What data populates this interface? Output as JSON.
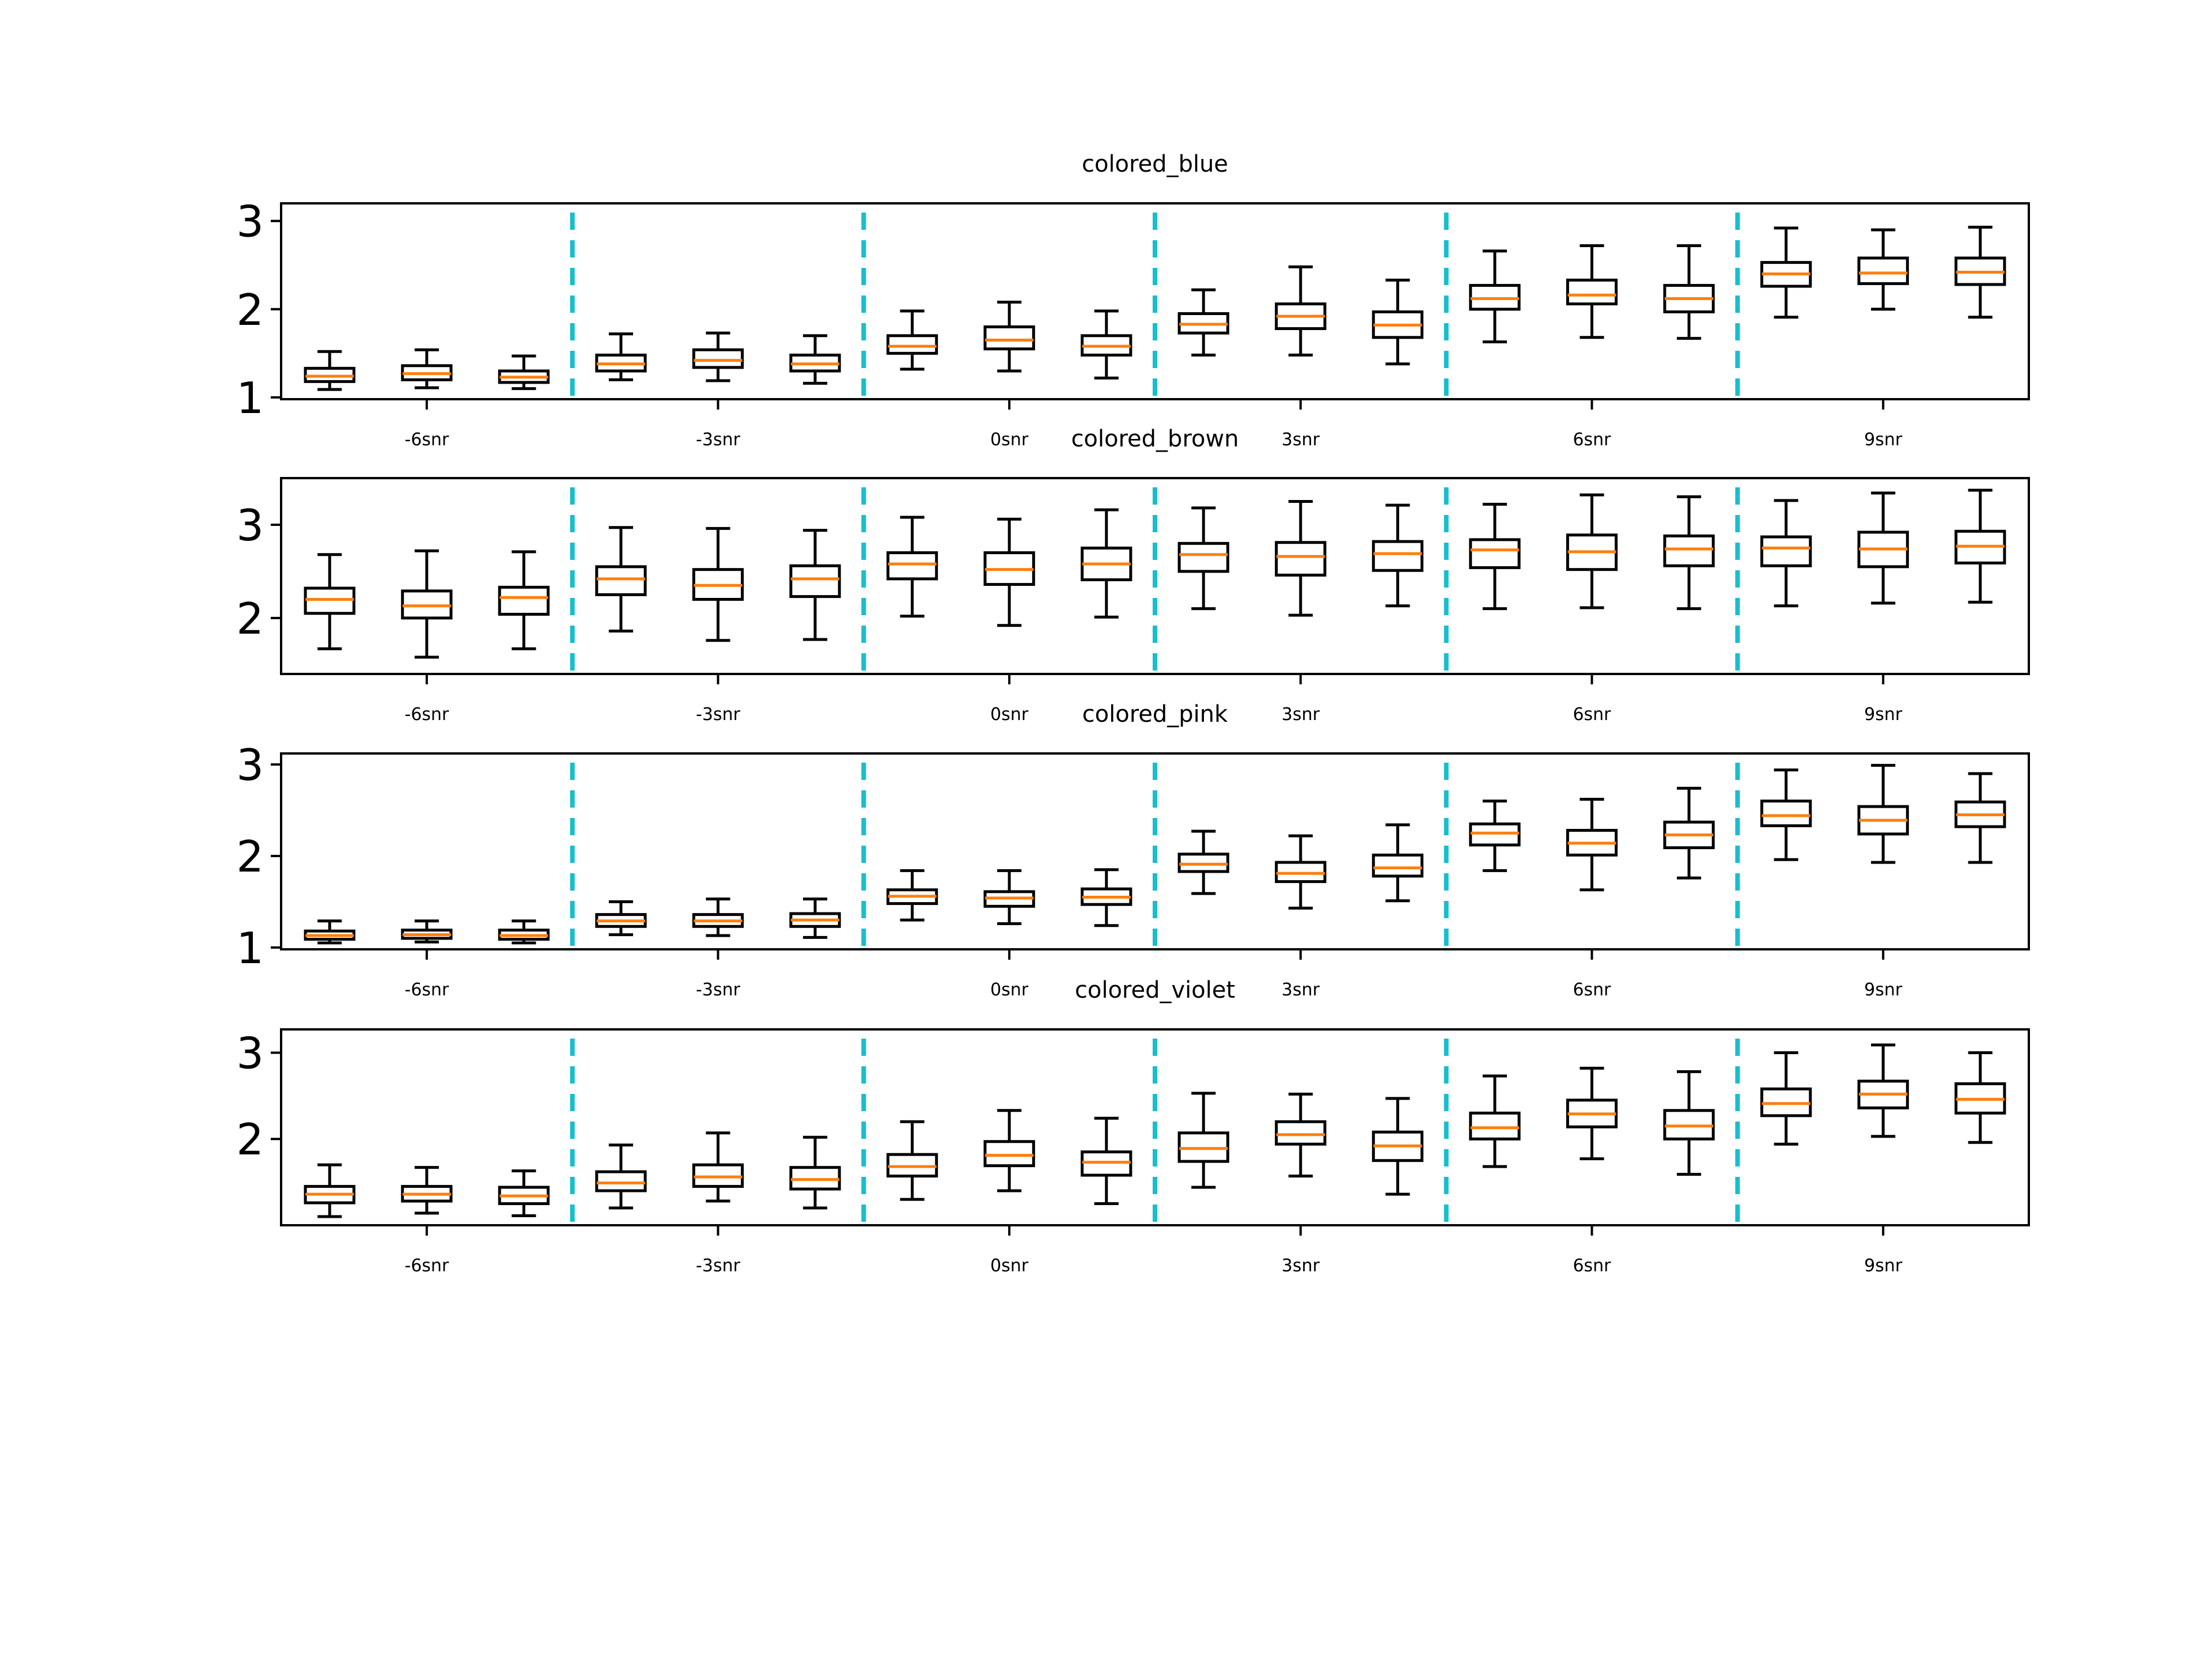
{
  "chart_data": [
    {
      "type": "box",
      "title": "colored_blue",
      "xlabel": "",
      "ylabel": "",
      "categories": [
        "-6snr",
        "-3snr",
        "0snr",
        "3snr",
        "6snr",
        "9snr"
      ],
      "boxes_per_category": 3,
      "yticks": [
        "1",
        "2",
        "3"
      ],
      "ylim": [
        0.98,
        3.2
      ],
      "separators_after_category": [
        1,
        2,
        3,
        4,
        5
      ],
      "boxes": [
        {
          "whisker_low": 1.09,
          "q1": 1.18,
          "median": 1.24,
          "q3": 1.33,
          "whisker_high": 1.52
        },
        {
          "whisker_low": 1.11,
          "q1": 1.2,
          "median": 1.27,
          "q3": 1.36,
          "whisker_high": 1.54
        },
        {
          "whisker_low": 1.1,
          "q1": 1.17,
          "median": 1.23,
          "q3": 1.3,
          "whisker_high": 1.47
        },
        {
          "whisker_low": 1.2,
          "q1": 1.3,
          "median": 1.38,
          "q3": 1.48,
          "whisker_high": 1.72
        },
        {
          "whisker_low": 1.19,
          "q1": 1.34,
          "median": 1.42,
          "q3": 1.54,
          "whisker_high": 1.73
        },
        {
          "whisker_low": 1.16,
          "q1": 1.3,
          "median": 1.38,
          "q3": 1.48,
          "whisker_high": 1.7
        },
        {
          "whisker_low": 1.32,
          "q1": 1.5,
          "median": 1.58,
          "q3": 1.7,
          "whisker_high": 1.98
        },
        {
          "whisker_low": 1.3,
          "q1": 1.55,
          "median": 1.65,
          "q3": 1.8,
          "whisker_high": 2.08
        },
        {
          "whisker_low": 1.22,
          "q1": 1.48,
          "median": 1.58,
          "q3": 1.7,
          "whisker_high": 1.98
        },
        {
          "whisker_low": 1.48,
          "q1": 1.73,
          "median": 1.83,
          "q3": 1.95,
          "whisker_high": 2.22
        },
        {
          "whisker_low": 1.48,
          "q1": 1.78,
          "median": 1.92,
          "q3": 2.06,
          "whisker_high": 2.48
        },
        {
          "whisker_low": 1.38,
          "q1": 1.68,
          "median": 1.82,
          "q3": 1.97,
          "whisker_high": 2.33
        },
        {
          "whisker_low": 1.63,
          "q1": 2.0,
          "median": 2.12,
          "q3": 2.27,
          "whisker_high": 2.66
        },
        {
          "whisker_low": 1.68,
          "q1": 2.06,
          "median": 2.16,
          "q3": 2.33,
          "whisker_high": 2.72
        },
        {
          "whisker_low": 1.67,
          "q1": 1.97,
          "median": 2.12,
          "q3": 2.27,
          "whisker_high": 2.72
        },
        {
          "whisker_low": 1.91,
          "q1": 2.26,
          "median": 2.4,
          "q3": 2.53,
          "whisker_high": 2.92
        },
        {
          "whisker_low": 2.0,
          "q1": 2.29,
          "median": 2.41,
          "q3": 2.58,
          "whisker_high": 2.9
        },
        {
          "whisker_low": 1.91,
          "q1": 2.28,
          "median": 2.42,
          "q3": 2.58,
          "whisker_high": 2.93
        }
      ]
    },
    {
      "type": "box",
      "title": "colored_brown",
      "xlabel": "",
      "ylabel": "",
      "categories": [
        "-6snr",
        "-3snr",
        "0snr",
        "3snr",
        "6snr",
        "9snr"
      ],
      "boxes_per_category": 3,
      "yticks": [
        "2",
        "3"
      ],
      "ylim": [
        1.4,
        3.5
      ],
      "separators_after_category": [
        1,
        2,
        3,
        4,
        5
      ],
      "boxes": [
        {
          "whisker_low": 1.67,
          "q1": 2.05,
          "median": 2.2,
          "q3": 2.32,
          "whisker_high": 2.68
        },
        {
          "whisker_low": 1.58,
          "q1": 2.0,
          "median": 2.13,
          "q3": 2.29,
          "whisker_high": 2.72
        },
        {
          "whisker_low": 1.67,
          "q1": 2.04,
          "median": 2.22,
          "q3": 2.33,
          "whisker_high": 2.71
        },
        {
          "whisker_low": 1.86,
          "q1": 2.25,
          "median": 2.42,
          "q3": 2.55,
          "whisker_high": 2.97
        },
        {
          "whisker_low": 1.76,
          "q1": 2.2,
          "median": 2.35,
          "q3": 2.52,
          "whisker_high": 2.96
        },
        {
          "whisker_low": 1.77,
          "q1": 2.23,
          "median": 2.42,
          "q3": 2.56,
          "whisker_high": 2.94
        },
        {
          "whisker_low": 2.02,
          "q1": 2.42,
          "median": 2.58,
          "q3": 2.7,
          "whisker_high": 3.08
        },
        {
          "whisker_low": 1.92,
          "q1": 2.36,
          "median": 2.52,
          "q3": 2.7,
          "whisker_high": 3.06
        },
        {
          "whisker_low": 2.01,
          "q1": 2.41,
          "median": 2.58,
          "q3": 2.75,
          "whisker_high": 3.16
        },
        {
          "whisker_low": 2.1,
          "q1": 2.5,
          "median": 2.68,
          "q3": 2.8,
          "whisker_high": 3.18
        },
        {
          "whisker_low": 2.03,
          "q1": 2.46,
          "median": 2.66,
          "q3": 2.81,
          "whisker_high": 3.25
        },
        {
          "whisker_low": 2.13,
          "q1": 2.51,
          "median": 2.69,
          "q3": 2.82,
          "whisker_high": 3.21
        },
        {
          "whisker_low": 2.1,
          "q1": 2.54,
          "median": 2.73,
          "q3": 2.84,
          "whisker_high": 3.22
        },
        {
          "whisker_low": 2.11,
          "q1": 2.52,
          "median": 2.71,
          "q3": 2.89,
          "whisker_high": 3.32
        },
        {
          "whisker_low": 2.1,
          "q1": 2.56,
          "median": 2.74,
          "q3": 2.88,
          "whisker_high": 3.3
        },
        {
          "whisker_low": 2.13,
          "q1": 2.56,
          "median": 2.75,
          "q3": 2.87,
          "whisker_high": 3.26
        },
        {
          "whisker_low": 2.16,
          "q1": 2.55,
          "median": 2.74,
          "q3": 2.92,
          "whisker_high": 3.34
        },
        {
          "whisker_low": 2.17,
          "q1": 2.59,
          "median": 2.77,
          "q3": 2.93,
          "whisker_high": 3.37
        }
      ]
    },
    {
      "type": "box",
      "title": "colored_pink",
      "xlabel": "",
      "ylabel": "",
      "categories": [
        "-6snr",
        "-3snr",
        "0snr",
        "3snr",
        "6snr",
        "9snr"
      ],
      "boxes_per_category": 3,
      "yticks": [
        "1",
        "2",
        "3"
      ],
      "ylim": [
        0.98,
        3.12
      ],
      "separators_after_category": [
        1,
        2,
        3,
        4,
        5
      ],
      "boxes": [
        {
          "whisker_low": 1.05,
          "q1": 1.09,
          "median": 1.13,
          "q3": 1.18,
          "whisker_high": 1.29
        },
        {
          "whisker_low": 1.06,
          "q1": 1.1,
          "median": 1.14,
          "q3": 1.19,
          "whisker_high": 1.29
        },
        {
          "whisker_low": 1.05,
          "q1": 1.09,
          "median": 1.13,
          "q3": 1.19,
          "whisker_high": 1.29
        },
        {
          "whisker_low": 1.14,
          "q1": 1.23,
          "median": 1.29,
          "q3": 1.36,
          "whisker_high": 1.5
        },
        {
          "whisker_low": 1.13,
          "q1": 1.23,
          "median": 1.29,
          "q3": 1.36,
          "whisker_high": 1.53
        },
        {
          "whisker_low": 1.11,
          "q1": 1.23,
          "median": 1.3,
          "q3": 1.37,
          "whisker_high": 1.53
        },
        {
          "whisker_low": 1.3,
          "q1": 1.48,
          "median": 1.56,
          "q3": 1.63,
          "whisker_high": 1.84
        },
        {
          "whisker_low": 1.26,
          "q1": 1.45,
          "median": 1.54,
          "q3": 1.61,
          "whisker_high": 1.84
        },
        {
          "whisker_low": 1.24,
          "q1": 1.47,
          "median": 1.55,
          "q3": 1.64,
          "whisker_high": 1.85
        },
        {
          "whisker_low": 1.59,
          "q1": 1.83,
          "median": 1.91,
          "q3": 2.02,
          "whisker_high": 2.27
        },
        {
          "whisker_low": 1.43,
          "q1": 1.72,
          "median": 1.81,
          "q3": 1.93,
          "whisker_high": 2.22
        },
        {
          "whisker_low": 1.51,
          "q1": 1.78,
          "median": 1.87,
          "q3": 2.01,
          "whisker_high": 2.34
        },
        {
          "whisker_low": 1.84,
          "q1": 2.12,
          "median": 2.25,
          "q3": 2.35,
          "whisker_high": 2.6
        },
        {
          "whisker_low": 1.63,
          "q1": 2.01,
          "median": 2.14,
          "q3": 2.28,
          "whisker_high": 2.62
        },
        {
          "whisker_low": 1.76,
          "q1": 2.09,
          "median": 2.23,
          "q3": 2.37,
          "whisker_high": 2.74
        },
        {
          "whisker_low": 1.96,
          "q1": 2.33,
          "median": 2.44,
          "q3": 2.6,
          "whisker_high": 2.94
        },
        {
          "whisker_low": 1.93,
          "q1": 2.24,
          "median": 2.39,
          "q3": 2.54,
          "whisker_high": 2.99
        },
        {
          "whisker_low": 1.93,
          "q1": 2.32,
          "median": 2.45,
          "q3": 2.59,
          "whisker_high": 2.9
        }
      ]
    },
    {
      "type": "box",
      "title": "colored_violet",
      "xlabel": "",
      "ylabel": "",
      "categories": [
        "-6snr",
        "-3snr",
        "0snr",
        "3snr",
        "6snr",
        "9snr"
      ],
      "boxes_per_category": 3,
      "yticks": [
        "2",
        "3"
      ],
      "ylim": [
        1.0,
        3.27
      ],
      "separators_after_category": [
        1,
        2,
        3,
        4,
        5
      ],
      "boxes": [
        {
          "whisker_low": 1.1,
          "q1": 1.26,
          "median": 1.36,
          "q3": 1.45,
          "whisker_high": 1.7
        },
        {
          "whisker_low": 1.14,
          "q1": 1.28,
          "median": 1.36,
          "q3": 1.45,
          "whisker_high": 1.67
        },
        {
          "whisker_low": 1.11,
          "q1": 1.25,
          "median": 1.34,
          "q3": 1.44,
          "whisker_high": 1.63
        },
        {
          "whisker_low": 1.2,
          "q1": 1.4,
          "median": 1.49,
          "q3": 1.62,
          "whisker_high": 1.93
        },
        {
          "whisker_low": 1.28,
          "q1": 1.45,
          "median": 1.56,
          "q3": 1.7,
          "whisker_high": 2.07
        },
        {
          "whisker_low": 1.2,
          "q1": 1.42,
          "median": 1.53,
          "q3": 1.67,
          "whisker_high": 2.02
        },
        {
          "whisker_low": 1.3,
          "q1": 1.57,
          "median": 1.68,
          "q3": 1.82,
          "whisker_high": 2.2
        },
        {
          "whisker_low": 1.4,
          "q1": 1.69,
          "median": 1.81,
          "q3": 1.97,
          "whisker_high": 2.33
        },
        {
          "whisker_low": 1.25,
          "q1": 1.58,
          "median": 1.73,
          "q3": 1.85,
          "whisker_high": 2.24
        },
        {
          "whisker_low": 1.44,
          "q1": 1.74,
          "median": 1.89,
          "q3": 2.07,
          "whisker_high": 2.53
        },
        {
          "whisker_low": 1.57,
          "q1": 1.94,
          "median": 2.05,
          "q3": 2.2,
          "whisker_high": 2.52
        },
        {
          "whisker_low": 1.36,
          "q1": 1.75,
          "median": 1.92,
          "q3": 2.08,
          "whisker_high": 2.47
        },
        {
          "whisker_low": 1.68,
          "q1": 2.0,
          "median": 2.13,
          "q3": 2.3,
          "whisker_high": 2.73
        },
        {
          "whisker_low": 1.77,
          "q1": 2.14,
          "median": 2.29,
          "q3": 2.45,
          "whisker_high": 2.82
        },
        {
          "whisker_low": 1.59,
          "q1": 2.0,
          "median": 2.15,
          "q3": 2.33,
          "whisker_high": 2.78
        },
        {
          "whisker_low": 1.94,
          "q1": 2.27,
          "median": 2.41,
          "q3": 2.58,
          "whisker_high": 3.0
        },
        {
          "whisker_low": 2.03,
          "q1": 2.36,
          "median": 2.52,
          "q3": 2.67,
          "whisker_high": 3.09
        },
        {
          "whisker_low": 1.96,
          "q1": 2.3,
          "median": 2.46,
          "q3": 2.64,
          "whisker_high": 3.0
        }
      ]
    }
  ],
  "colors": {
    "box": "#000000",
    "median": "#ff7f0e",
    "separator": "#17becf"
  }
}
